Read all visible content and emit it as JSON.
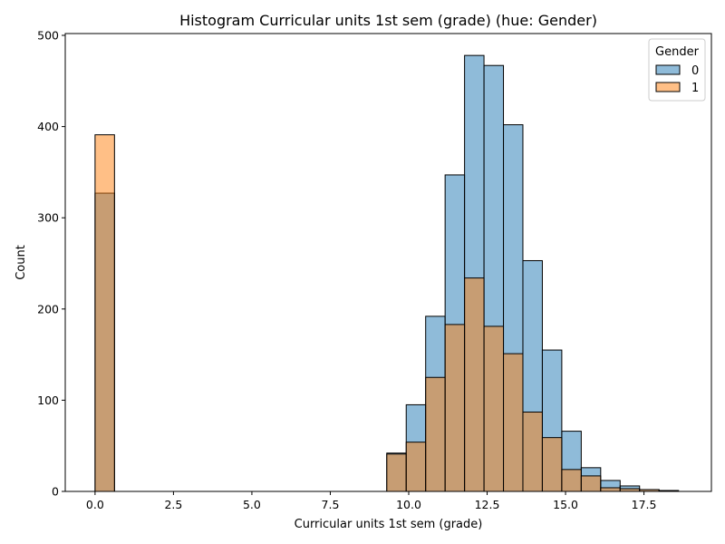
{
  "chart_data": {
    "type": "bar",
    "title": "Histogram Curricular units 1st sem (grade) (hue: Gender)",
    "xlabel": "Curricular units 1st sem (grade)",
    "ylabel": "Count",
    "xlim": [
      -0.95,
      19.65
    ],
    "ylim": [
      0,
      502
    ],
    "x_ticks": [
      "0.0",
      "2.5",
      "5.0",
      "7.5",
      "10.0",
      "12.5",
      "15.0",
      "17.5"
    ],
    "x_tick_values": [
      0,
      2.5,
      5,
      7.5,
      10,
      12.5,
      15,
      17.5
    ],
    "y_ticks": [
      "0",
      "100",
      "200",
      "300",
      "400",
      "500"
    ],
    "y_tick_values": [
      0,
      100,
      200,
      300,
      400,
      500
    ],
    "bin_width": 0.62,
    "bins": [
      {
        "start": 0.0,
        "end": 0.62,
        "values": [
          327,
          391
        ]
      },
      {
        "start": 9.3,
        "end": 9.92,
        "values": [
          42,
          41
        ]
      },
      {
        "start": 9.92,
        "end": 10.54,
        "values": [
          95,
          54
        ]
      },
      {
        "start": 10.54,
        "end": 11.16,
        "values": [
          192,
          125
        ]
      },
      {
        "start": 11.16,
        "end": 11.78,
        "values": [
          347,
          183
        ]
      },
      {
        "start": 11.78,
        "end": 12.4,
        "values": [
          478,
          234
        ]
      },
      {
        "start": 12.4,
        "end": 13.02,
        "values": [
          467,
          181
        ]
      },
      {
        "start": 13.02,
        "end": 13.64,
        "values": [
          402,
          151
        ]
      },
      {
        "start": 13.64,
        "end": 14.26,
        "values": [
          253,
          87
        ]
      },
      {
        "start": 14.26,
        "end": 14.88,
        "values": [
          155,
          59
        ]
      },
      {
        "start": 14.88,
        "end": 15.5,
        "values": [
          66,
          24
        ]
      },
      {
        "start": 15.5,
        "end": 16.12,
        "values": [
          26,
          17
        ]
      },
      {
        "start": 16.12,
        "end": 16.74,
        "values": [
          12,
          4
        ]
      },
      {
        "start": 16.74,
        "end": 17.36,
        "values": [
          6,
          3
        ]
      },
      {
        "start": 17.36,
        "end": 17.98,
        "values": [
          2,
          2
        ]
      },
      {
        "start": 17.98,
        "end": 18.6,
        "values": [
          1,
          1
        ]
      }
    ],
    "series": [
      {
        "name": "0",
        "color": "#1f77b4",
        "fill_alpha": 0.5
      },
      {
        "name": "1",
        "color": "#ff7f0e",
        "fill_alpha": 0.5
      }
    ],
    "legend": {
      "title": "Gender",
      "placement": "top-right"
    },
    "grid": false
  }
}
